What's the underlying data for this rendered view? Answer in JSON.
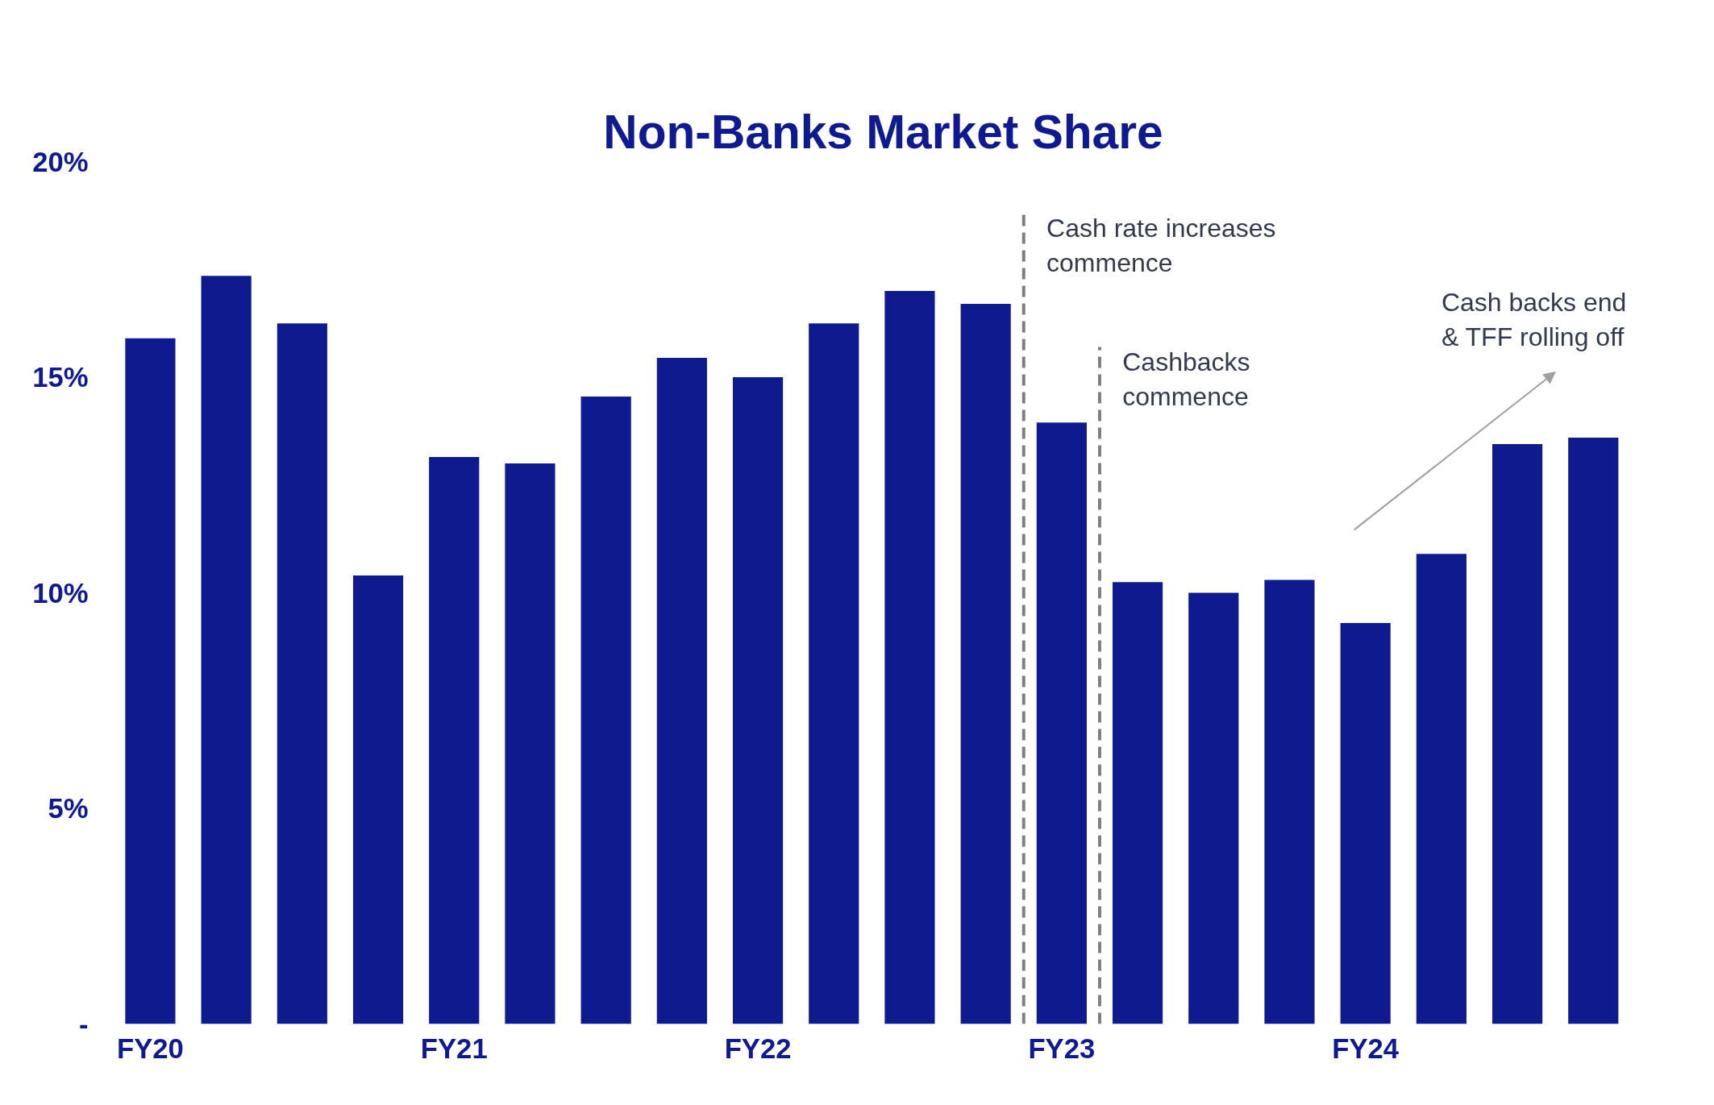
{
  "chart_data": {
    "type": "bar",
    "title": "Non-Banks Market Share",
    "color": "#0f1a8f",
    "categories": [
      "FY20",
      null,
      null,
      null,
      "FY21",
      null,
      null,
      null,
      "FY22",
      null,
      null,
      null,
      "FY23",
      null,
      null,
      null,
      "FY24",
      null,
      null,
      null
    ],
    "values": [
      15.9,
      17.35,
      16.25,
      10.4,
      13.15,
      13.0,
      14.55,
      15.45,
      15.0,
      16.25,
      17.0,
      16.7,
      13.95,
      10.25,
      10.0,
      10.3,
      9.3,
      10.9,
      13.45,
      13.6
    ],
    "ylim": [
      0,
      20
    ],
    "yticks": [
      {
        "value": 0,
        "label": "-"
      },
      {
        "value": 5,
        "label": "5%"
      },
      {
        "value": 10,
        "label": "10%"
      },
      {
        "value": 15,
        "label": "15%"
      },
      {
        "value": 20,
        "label": "20%"
      }
    ],
    "annotations": [
      "Cash rate increases\ncommence",
      "Cashbacks\ncommence",
      "Cash backs end\n& TFF rolling off"
    ],
    "grid": false
  }
}
